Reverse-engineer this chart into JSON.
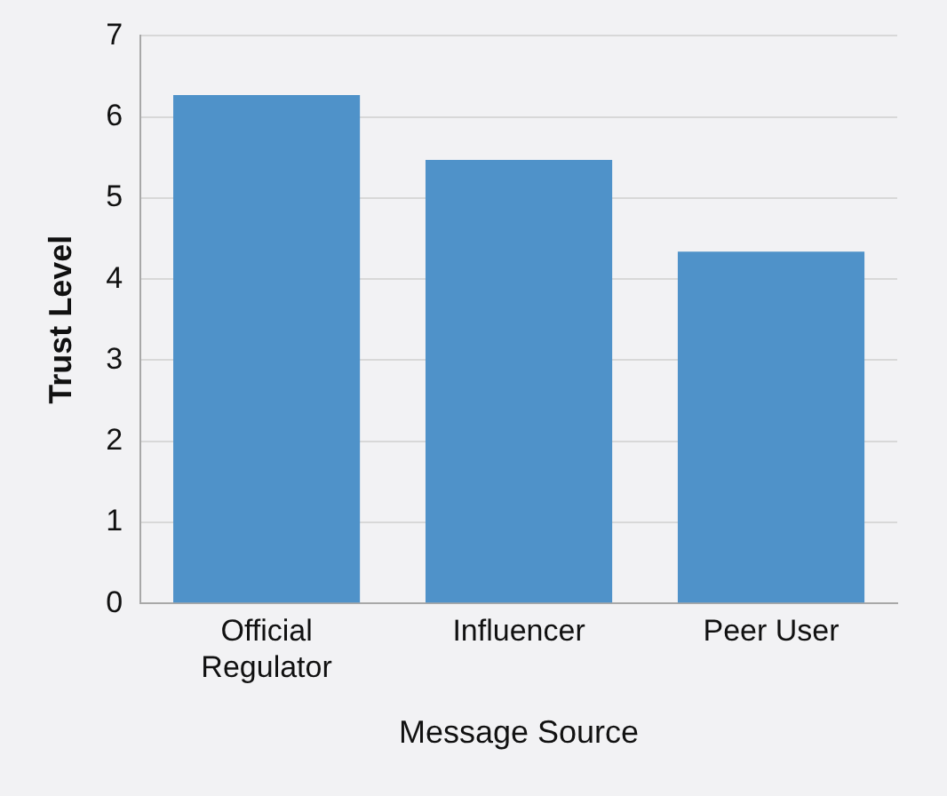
{
  "chart_data": {
    "type": "bar",
    "xlabel": "Message Source",
    "ylabel": "Trust Level",
    "categories": [
      "Official Regulator",
      "Influencer",
      "Peer User"
    ],
    "values": [
      6.27,
      5.47,
      4.34
    ],
    "color": "#4f92c9",
    "ylim": [
      0,
      7
    ],
    "yticks": [
      0,
      1,
      2,
      3,
      4,
      5,
      6,
      7
    ],
    "grid": "y"
  }
}
